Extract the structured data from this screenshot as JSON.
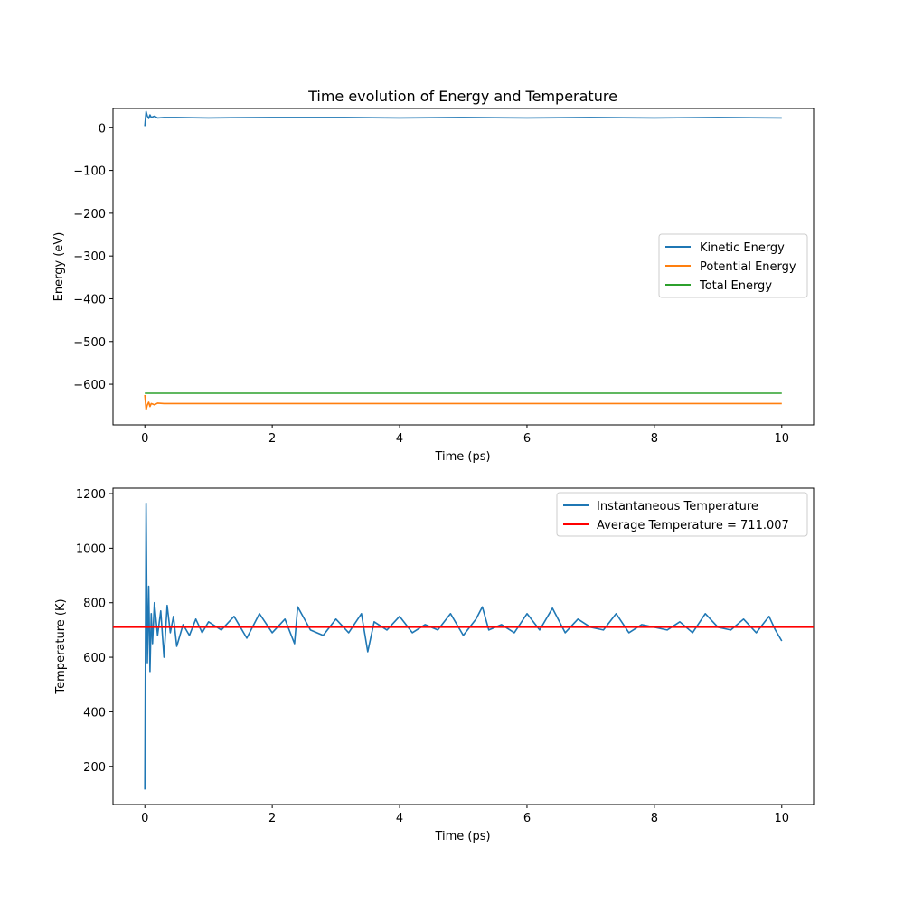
{
  "figure": {
    "title": "Time evolution of Energy and Temperature"
  },
  "colors": {
    "kinetic": "#1f77b4",
    "potential": "#ff7f0e",
    "total": "#2ca02c",
    "temperature": "#1f77b4",
    "average": "#ff0000"
  },
  "chart_data": [
    {
      "type": "line",
      "title": "Time evolution of Energy and Temperature",
      "xlabel": "Time (ps)",
      "ylabel": "Energy (eV)",
      "xlim": [
        -0.5,
        10.5
      ],
      "ylim": [
        -695,
        45
      ],
      "xticks": [
        0,
        2,
        4,
        6,
        8,
        10
      ],
      "yticks": [
        0,
        -100,
        -200,
        -300,
        -400,
        -500,
        -600
      ],
      "grid": false,
      "legend_position": "center-right",
      "series": [
        {
          "name": "Kinetic Energy",
          "color": "#1f77b4",
          "x": [
            0,
            0.02,
            0.04,
            0.06,
            0.08,
            0.1,
            0.15,
            0.2,
            0.3,
            0.5,
            1,
            2,
            3,
            4,
            5,
            6,
            7,
            8,
            9,
            10
          ],
          "y": [
            4,
            38,
            27,
            22,
            30,
            24,
            27,
            23,
            24,
            24,
            23,
            24,
            24,
            23,
            24,
            23,
            24,
            23,
            24,
            23
          ]
        },
        {
          "name": "Potential Energy",
          "color": "#ff7f0e",
          "x": [
            0,
            0.02,
            0.04,
            0.06,
            0.08,
            0.1,
            0.15,
            0.2,
            0.3,
            0.5,
            1,
            2,
            3,
            4,
            5,
            6,
            7,
            8,
            9,
            10
          ],
          "y": [
            -625,
            -660,
            -648,
            -642,
            -652,
            -645,
            -648,
            -644,
            -645,
            -645,
            -645,
            -645,
            -645,
            -645,
            -645,
            -645,
            -645,
            -645,
            -645,
            -645
          ]
        },
        {
          "name": "Total Energy",
          "color": "#2ca02c",
          "x": [
            0,
            10
          ],
          "y": [
            -621,
            -621
          ]
        }
      ]
    },
    {
      "type": "line",
      "xlabel": "Time (ps)",
      "ylabel": "Temperature (K)",
      "xlim": [
        -0.5,
        10.5
      ],
      "ylim": [
        60,
        1220
      ],
      "xticks": [
        0,
        2,
        4,
        6,
        8,
        10
      ],
      "yticks": [
        200,
        400,
        600,
        800,
        1000,
        1200
      ],
      "grid": false,
      "legend_position": "top-right",
      "series": [
        {
          "name": "Instantaneous Temperature",
          "color": "#1f77b4",
          "x": [
            0,
            0.02,
            0.04,
            0.06,
            0.08,
            0.1,
            0.12,
            0.15,
            0.2,
            0.25,
            0.3,
            0.35,
            0.4,
            0.45,
            0.5,
            0.6,
            0.7,
            0.8,
            0.9,
            1.0,
            1.2,
            1.4,
            1.6,
            1.8,
            2.0,
            2.2,
            2.35,
            2.4,
            2.6,
            2.8,
            3.0,
            3.2,
            3.4,
            3.5,
            3.6,
            3.8,
            4.0,
            4.2,
            4.4,
            4.6,
            4.8,
            5.0,
            5.2,
            5.3,
            5.4,
            5.6,
            5.8,
            6.0,
            6.2,
            6.4,
            6.6,
            6.8,
            7.0,
            7.2,
            7.4,
            7.6,
            7.8,
            8.0,
            8.2,
            8.4,
            8.6,
            8.8,
            9.0,
            9.2,
            9.4,
            9.6,
            9.8,
            9.9,
            10.0
          ],
          "y": [
            115,
            1165,
            580,
            860,
            548,
            760,
            650,
            800,
            680,
            770,
            600,
            790,
            690,
            750,
            640,
            720,
            680,
            740,
            690,
            730,
            700,
            750,
            670,
            760,
            690,
            740,
            650,
            785,
            700,
            680,
            740,
            690,
            760,
            620,
            730,
            700,
            750,
            690,
            720,
            700,
            760,
            680,
            740,
            785,
            700,
            720,
            690,
            760,
            700,
            780,
            690,
            740,
            710,
            700,
            760,
            690,
            720,
            710,
            700,
            730,
            690,
            760,
            710,
            700,
            740,
            690,
            750,
            700,
            660
          ]
        },
        {
          "name": "Average Temperature = 711.007",
          "color": "#ff0000",
          "hline": 711.007
        }
      ]
    }
  ]
}
